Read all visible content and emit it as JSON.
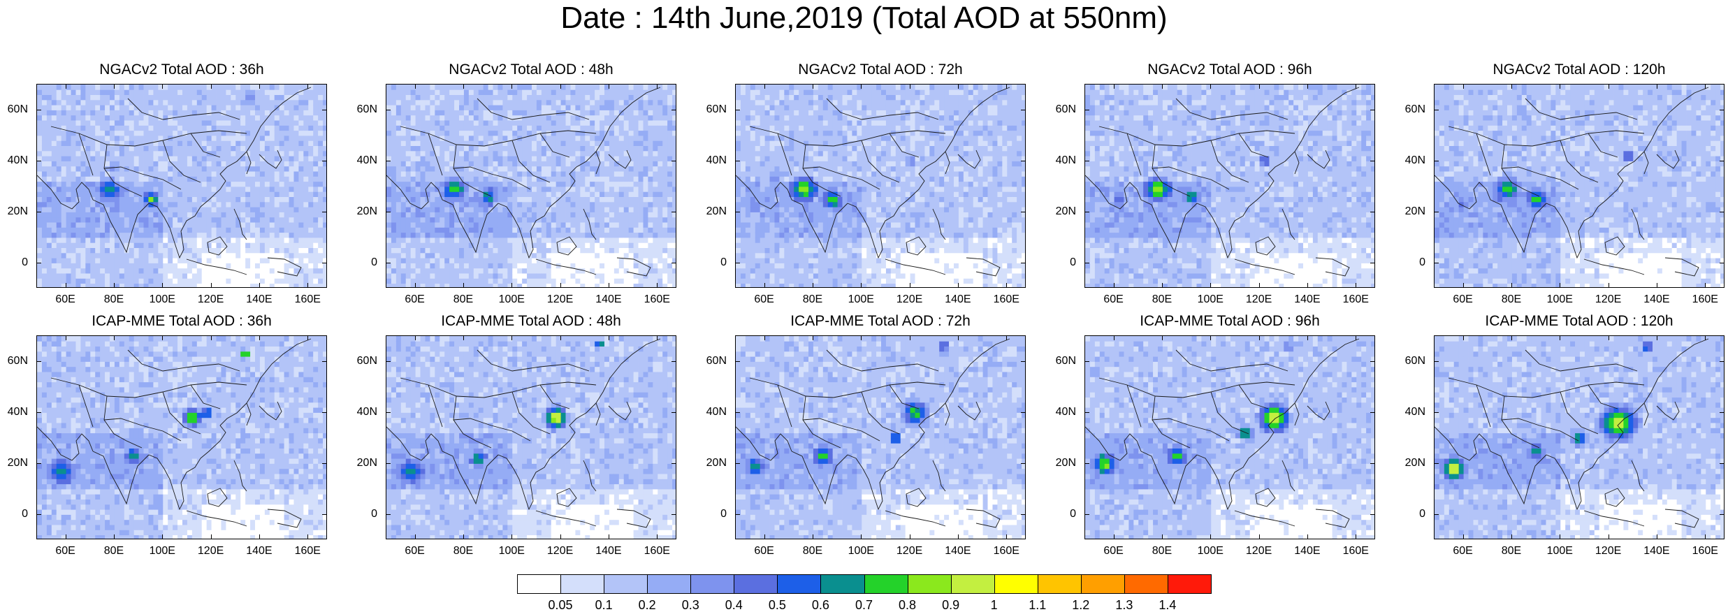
{
  "title": "Date : 14th June,2019 (Total AOD at 550nm)",
  "panels": [
    {
      "title": "NGACv2 Total AOD : 36h",
      "model": "ngac"
    },
    {
      "title": "NGACv2 Total AOD : 48h",
      "model": "ngac"
    },
    {
      "title": "NGACv2 Total AOD : 72h",
      "model": "ngac"
    },
    {
      "title": "NGACv2 Total AOD : 96h",
      "model": "ngac"
    },
    {
      "title": "NGACv2 Total AOD : 120h",
      "model": "ngac"
    },
    {
      "title": "ICAP-MME Total AOD : 36h",
      "model": "icap"
    },
    {
      "title": "ICAP-MME Total AOD : 48h",
      "model": "icap"
    },
    {
      "title": "ICAP-MME Total AOD : 72h",
      "model": "icap"
    },
    {
      "title": "ICAP-MME Total AOD : 96h",
      "model": "icap"
    },
    {
      "title": "ICAP-MME Total AOD : 120h",
      "model": "icap"
    }
  ],
  "lat_labels": [
    "60N",
    "40N",
    "20N",
    "0"
  ],
  "lon_labels": [
    "60E",
    "80E",
    "100E",
    "120E",
    "140E",
    "160E"
  ],
  "colorbar": {
    "labels": [
      "0.05",
      "0.1",
      "0.2",
      "0.3",
      "0.4",
      "0.5",
      "0.6",
      "0.7",
      "0.8",
      "0.9",
      "1",
      "1.1",
      "1.2",
      "1.3",
      "1.4"
    ],
    "colors": [
      "#ffffff",
      "#d4dffb",
      "#b3c4f8",
      "#95acf5",
      "#7e93ee",
      "#5b6fe0",
      "#1d5fe8",
      "#0a8f8f",
      "#24d22a",
      "#8be81d",
      "#c3ef40",
      "#ffff00",
      "#ffc400",
      "#ff9f00",
      "#ff6a00",
      "#ff1a0a"
    ]
  }
}
